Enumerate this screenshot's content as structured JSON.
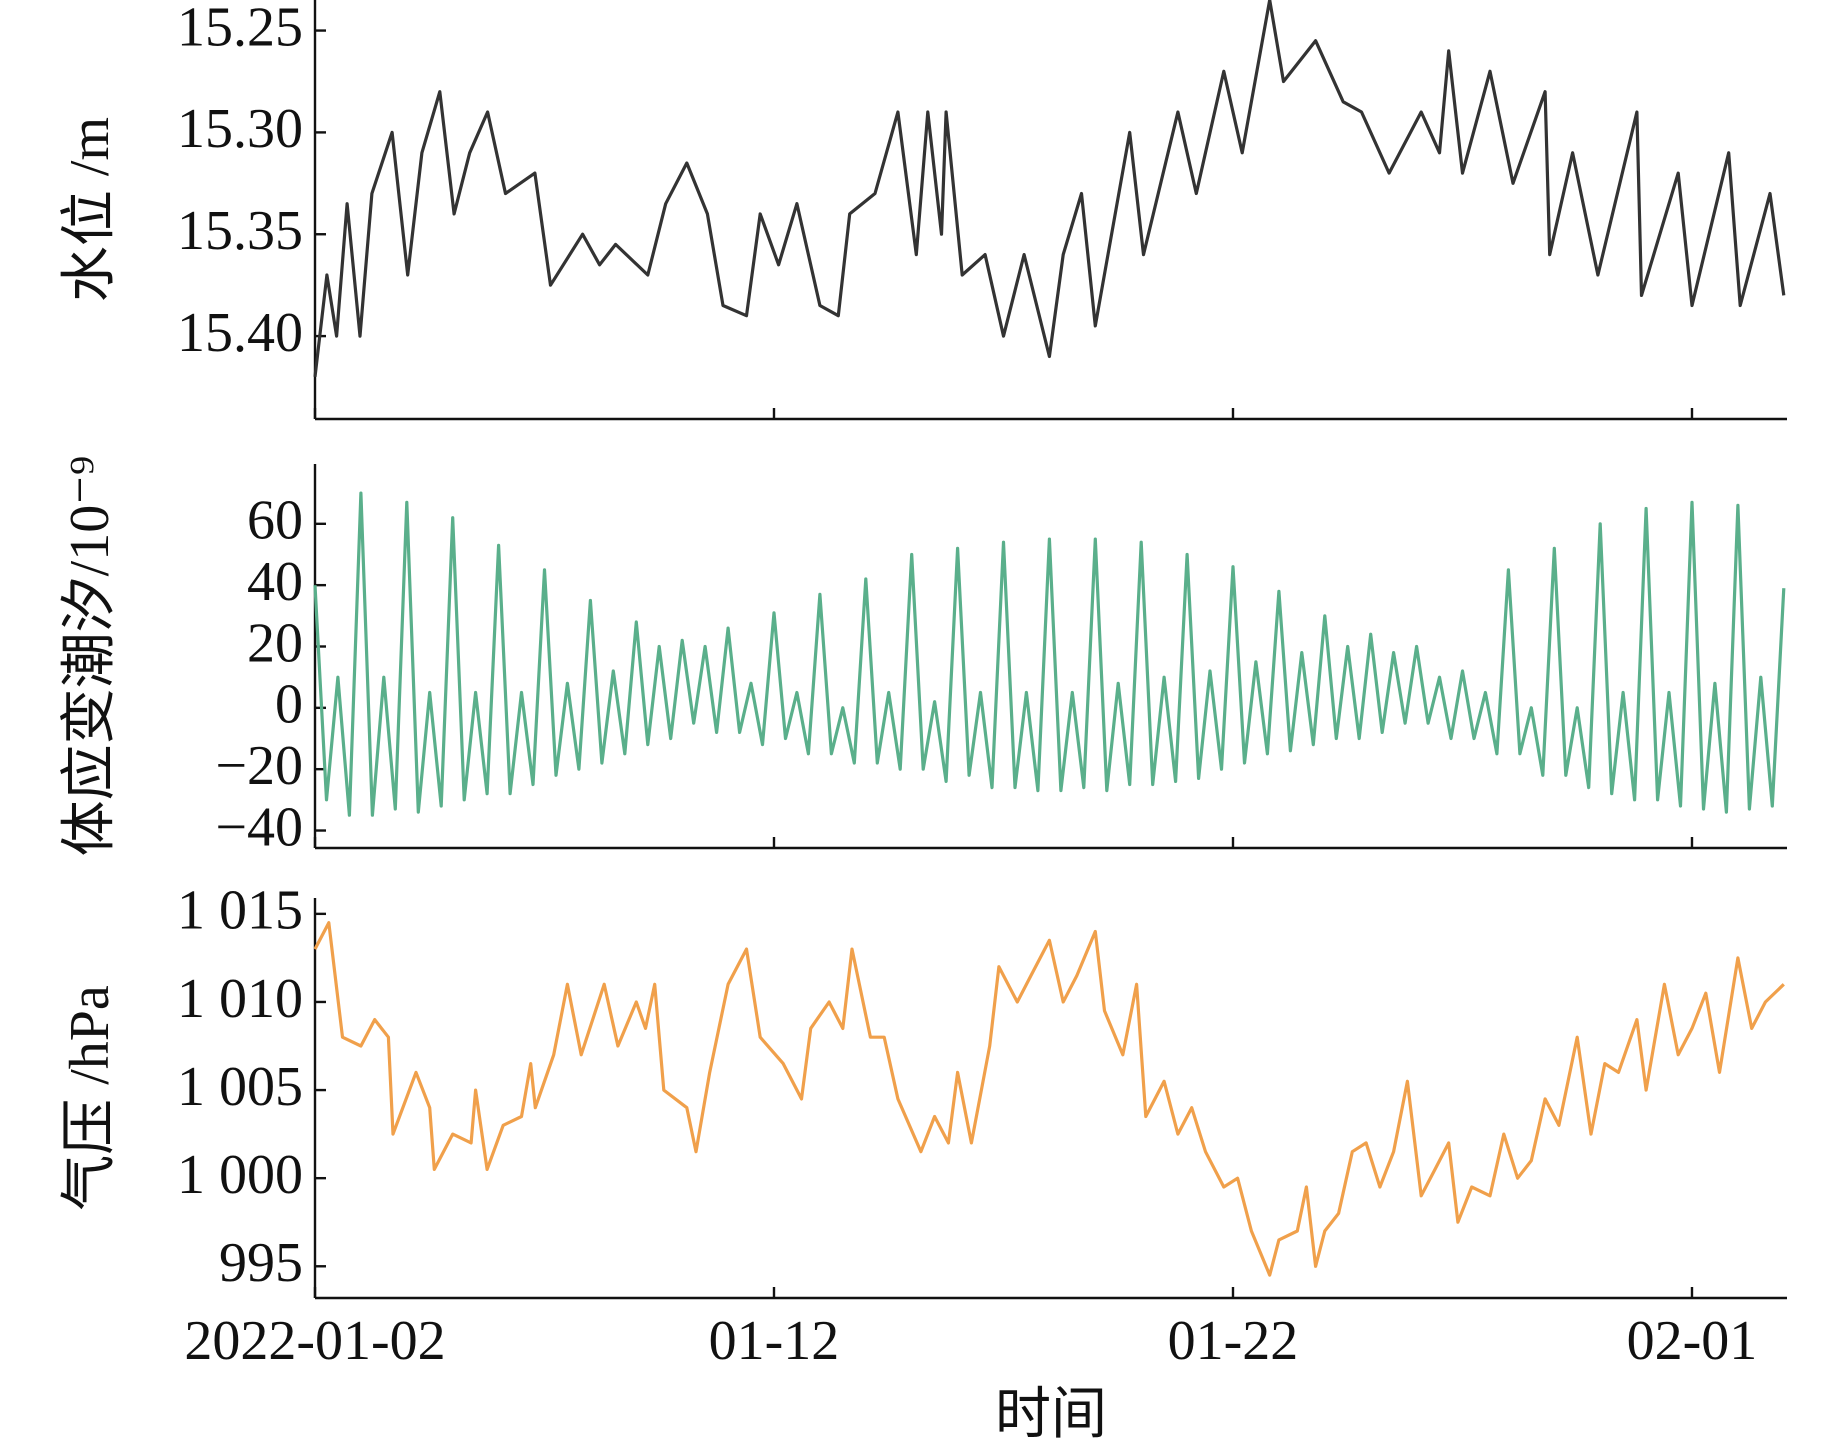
{
  "chart_data": [
    {
      "type": "line",
      "ylabel": "水位 /m",
      "color": "#333333",
      "x": [
        0,
        0.26,
        0.47,
        0.7,
        0.98,
        1.24,
        1.68,
        2.02,
        2.33,
        2.72,
        3.03,
        3.37,
        3.76,
        4.15,
        4.79,
        5.13,
        5.83,
        6.2,
        6.55,
        7.25,
        7.64,
        8.1,
        8.55,
        8.89,
        9.4,
        9.7,
        10.1,
        10.5,
        11.0,
        11.4,
        11.65,
        12.2,
        12.7,
        13.1,
        13.35,
        13.65,
        13.75,
        14.1,
        14.6,
        15.0,
        15.45,
        16.0,
        16.3,
        16.7,
        17.0,
        17.75,
        18.05,
        18.8,
        19.2,
        19.8,
        20.2,
        20.8,
        21.1,
        21.8,
        22.4,
        22.8,
        23.4,
        24.1,
        24.5,
        24.7,
        25.0,
        25.6,
        26.1,
        26.8,
        26.9,
        27.4,
        27.95,
        28.8,
        28.9,
        29.7,
        30.0,
        30.8,
        31.05,
        31.7,
        32.0
      ],
      "values": [
        15.42,
        15.37,
        15.4,
        15.335,
        15.4,
        15.33,
        15.3,
        15.37,
        15.31,
        15.28,
        15.34,
        15.31,
        15.29,
        15.33,
        15.32,
        15.375,
        15.35,
        15.365,
        15.355,
        15.37,
        15.335,
        15.315,
        15.34,
        15.385,
        15.39,
        15.34,
        15.365,
        15.335,
        15.385,
        15.39,
        15.34,
        15.33,
        15.29,
        15.36,
        15.29,
        15.35,
        15.29,
        15.37,
        15.36,
        15.4,
        15.36,
        15.41,
        15.36,
        15.33,
        15.395,
        15.3,
        15.36,
        15.29,
        15.33,
        15.27,
        15.31,
        15.235,
        15.275,
        15.255,
        15.285,
        15.29,
        15.32,
        15.29,
        15.31,
        15.26,
        15.32,
        15.27,
        15.325,
        15.28,
        15.36,
        15.31,
        15.37,
        15.29,
        15.38,
        15.32,
        15.385,
        15.31,
        15.385,
        15.33,
        15.38
      ],
      "xlim": [
        0,
        32.07
      ],
      "xticks": [
        0,
        10,
        20,
        30
      ],
      "ylim": [
        15.4407,
        15.235
      ],
      "yticks": [
        {
          "value": 15.25,
          "label": "15.25"
        },
        {
          "value": 15.3,
          "label": "15.30"
        },
        {
          "value": 15.35,
          "label": "15.35"
        },
        {
          "value": 15.4,
          "label": "15.40"
        }
      ]
    },
    {
      "type": "line",
      "ylabel": "体应变潮汐/10⁻⁹",
      "color": "#5aaf8b",
      "x": [
        0,
        0.25,
        0.5,
        0.75,
        1,
        1.25,
        1.5,
        1.75,
        2,
        2.25,
        2.5,
        2.75,
        3,
        3.25,
        3.5,
        3.75,
        4,
        4.25,
        4.5,
        4.75,
        5,
        5.25,
        5.5,
        5.75,
        6,
        6.25,
        6.5,
        6.75,
        7,
        7.25,
        7.5,
        7.75,
        8,
        8.25,
        8.5,
        8.75,
        9,
        9.25,
        9.5,
        9.75,
        10,
        10.25,
        10.5,
        10.75,
        11,
        11.25,
        11.5,
        11.75,
        12,
        12.25,
        12.5,
        12.75,
        13,
        13.25,
        13.5,
        13.75,
        14,
        14.25,
        14.5,
        14.75,
        15,
        15.25,
        15.5,
        15.75,
        16,
        16.25,
        16.5,
        16.75,
        17,
        17.25,
        17.5,
        17.75,
        18,
        18.25,
        18.5,
        18.75,
        19,
        19.25,
        19.5,
        19.75,
        20,
        20.25,
        20.5,
        20.75,
        21,
        21.25,
        21.5,
        21.75,
        22,
        22.25,
        22.5,
        22.75,
        23,
        23.25,
        23.5,
        23.75,
        24,
        24.25,
        24.5,
        24.75,
        25,
        25.25,
        25.5,
        25.75,
        26,
        26.25,
        26.5,
        26.75,
        27,
        27.25,
        27.5,
        27.75,
        28,
        28.25,
        28.5,
        28.75,
        29,
        29.25,
        29.5,
        29.75,
        30,
        30.25,
        30.5,
        30.75,
        31,
        31.25,
        31.5,
        31.75,
        32
      ],
      "values": [
        40,
        -30,
        10,
        -35,
        70,
        -35,
        10,
        -33,
        67,
        -34,
        5,
        -32,
        62,
        -30,
        5,
        -28,
        53,
        -28,
        5,
        -25,
        45,
        -22,
        8,
        -20,
        35,
        -18,
        12,
        -15,
        28,
        -12,
        20,
        -10,
        22,
        -5,
        20,
        -8,
        26,
        -8,
        8,
        -12,
        31,
        -10,
        5,
        -15,
        37,
        -15,
        0,
        -18,
        42,
        -18,
        5,
        -20,
        50,
        -20,
        2,
        -24,
        52,
        -22,
        5,
        -26,
        54,
        -26,
        5,
        -27,
        55,
        -27,
        5,
        -26,
        55,
        -27,
        8,
        -25,
        54,
        -25,
        10,
        -24,
        50,
        -23,
        12,
        -20,
        46,
        -18,
        15,
        -15,
        38,
        -14,
        18,
        -12,
        30,
        -10,
        20,
        -10,
        24,
        -8,
        18,
        -5,
        20,
        -5,
        10,
        -10,
        12,
        -10,
        5,
        -15,
        45,
        -15,
        0,
        -22,
        52,
        -22,
        0,
        -26,
        60,
        -28,
        5,
        -30,
        65,
        -30,
        5,
        -32,
        67,
        -33,
        8,
        -34,
        66,
        -33,
        10,
        -32,
        39
      ],
      "xlim": [
        0,
        32.07
      ],
      "xticks": [
        0,
        10,
        20,
        30
      ],
      "ylim": [
        -45.7,
        79.5
      ],
      "yticks": [
        {
          "value": -40,
          "label": "−40"
        },
        {
          "value": -20,
          "label": "−20"
        },
        0,
        20,
        40,
        60
      ]
    },
    {
      "type": "line",
      "ylabel": "气压 /hPa",
      "xlabel": "时间",
      "color": "#f0a04b",
      "x": [
        0,
        0.3,
        0.6,
        1.0,
        1.3,
        1.6,
        1.7,
        2.2,
        2.5,
        2.6,
        3.0,
        3.4,
        3.5,
        3.75,
        4.1,
        4.5,
        4.7,
        4.8,
        5.2,
        5.5,
        5.8,
        6.3,
        6.6,
        7.0,
        7.2,
        7.4,
        7.6,
        8.1,
        8.3,
        8.6,
        9.0,
        9.4,
        9.7,
        10.2,
        10.6,
        10.8,
        11.2,
        11.5,
        11.7,
        12.1,
        12.4,
        12.7,
        13.2,
        13.5,
        13.8,
        14.0,
        14.3,
        14.7,
        14.9,
        15.3,
        15.6,
        16.0,
        16.3,
        16.6,
        17.0,
        17.2,
        17.6,
        17.9,
        18.1,
        18.5,
        18.8,
        19.1,
        19.4,
        19.8,
        20.1,
        20.4,
        20.8,
        21.0,
        21.4,
        21.6,
        21.8,
        22.0,
        22.3,
        22.6,
        22.9,
        23.2,
        23.5,
        23.8,
        24.1,
        24.4,
        24.7,
        24.9,
        25.2,
        25.6,
        25.9,
        26.2,
        26.5,
        26.8,
        27.1,
        27.5,
        27.8,
        28.1,
        28.4,
        28.8,
        29.0,
        29.4,
        29.7,
        30.0,
        30.3,
        30.6,
        31.0,
        31.3,
        31.6,
        32.0
      ],
      "values": [
        1013,
        1014.5,
        1008,
        1007.5,
        1009,
        1008,
        1002.5,
        1006,
        1004,
        1000.5,
        1002.5,
        1002,
        1005,
        1000.5,
        1003,
        1003.5,
        1006.5,
        1004,
        1007,
        1011,
        1007,
        1011,
        1007.5,
        1010,
        1008.5,
        1011,
        1005,
        1004,
        1001.5,
        1006,
        1011,
        1013,
        1008,
        1006.5,
        1004.5,
        1008.5,
        1010,
        1008.5,
        1013,
        1008,
        1008,
        1004.5,
        1001.5,
        1003.5,
        1002,
        1006,
        1002,
        1007.5,
        1012,
        1010,
        1011.5,
        1013.5,
        1010,
        1011.5,
        1014,
        1009.5,
        1007,
        1011,
        1003.5,
        1005.5,
        1002.5,
        1004,
        1001.5,
        999.5,
        1000,
        997,
        994.5,
        996.5,
        997,
        999.5,
        995,
        997,
        998,
        1001.5,
        1002,
        999.5,
        1001.5,
        1005.5,
        999,
        1000.5,
        1002,
        997.5,
        999.5,
        999,
        1002.5,
        1000,
        1001,
        1004.5,
        1003,
        1008,
        1002.5,
        1006.5,
        1006,
        1009,
        1005,
        1011,
        1007,
        1008.5,
        1010.5,
        1006,
        1012.5,
        1008.5,
        1010,
        1011
      ],
      "xlim": [
        0,
        32.07
      ],
      "xticks": [
        {
          "value": 0,
          "label": "2022-01-02"
        },
        {
          "value": 10,
          "label": "01-12"
        },
        {
          "value": 20,
          "label": "01-22"
        },
        {
          "value": 30,
          "label": "02-01"
        }
      ],
      "ylim": [
        993.2,
        1015.9
      ],
      "yticks": [
        995,
        {
          "value": 1000,
          "label": "1 000"
        },
        {
          "value": 1005,
          "label": "1 005"
        },
        {
          "value": 1010,
          "label": "1 010"
        },
        {
          "value": 1015,
          "label": "1 015"
        }
      ]
    }
  ]
}
